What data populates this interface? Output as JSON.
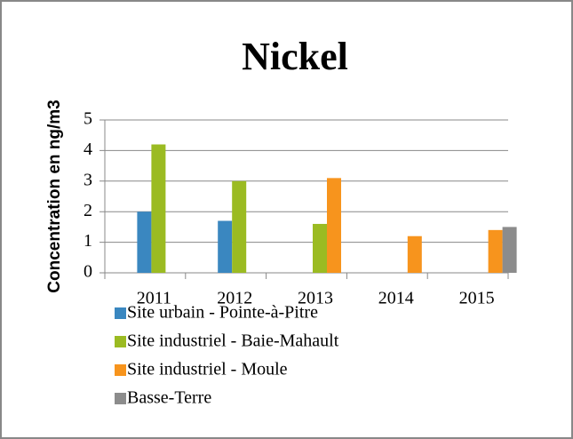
{
  "chart_data": {
    "type": "bar",
    "title": "Nickel",
    "y_label": "Concentration en ng/m3",
    "categories": [
      "2011",
      "2012",
      "2013",
      "2014",
      "2015"
    ],
    "series": [
      {
        "name": "Site urbain - Pointe-à-Pitre",
        "color": "#3a87c0",
        "values": [
          2.0,
          1.7,
          null,
          null,
          null
        ]
      },
      {
        "name": "Site industriel - Baie-Mahault",
        "color": "#9bbb22",
        "values": [
          4.2,
          3.0,
          1.6,
          null,
          null
        ]
      },
      {
        "name": "Site industriel - Moule",
        "color": "#f7941d",
        "values": [
          null,
          null,
          3.1,
          1.2,
          1.4
        ]
      },
      {
        "name": "Basse-Terre",
        "color": "#8c8c8c",
        "values": [
          null,
          null,
          null,
          null,
          1.5
        ]
      }
    ],
    "ylim": [
      0,
      5
    ],
    "yticks": [
      0,
      1,
      2,
      3,
      4,
      5
    ],
    "grid": true,
    "legend": "bottom"
  }
}
